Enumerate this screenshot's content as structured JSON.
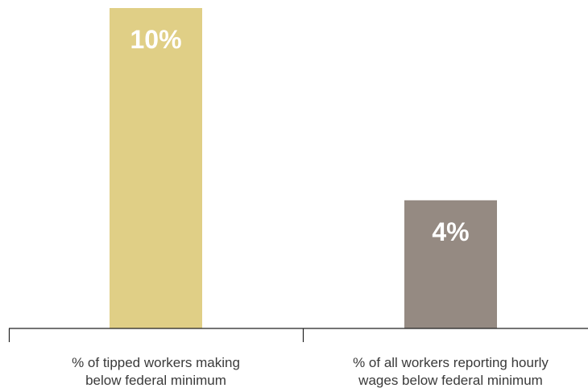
{
  "chart_data": {
    "type": "bar",
    "categories": [
      [
        "% of tipped workers making",
        "below federal minimum"
      ],
      [
        "% of all workers reporting hourly",
        "wages below federal minimum"
      ]
    ],
    "values": [
      10,
      4
    ],
    "data_labels": [
      "10%",
      "4%"
    ],
    "colors": [
      "#e0cf86",
      "#958a82"
    ],
    "ylim": [
      0,
      10
    ],
    "grid": false,
    "legend": "none",
    "title": "",
    "xlabel": "",
    "ylabel": ""
  }
}
